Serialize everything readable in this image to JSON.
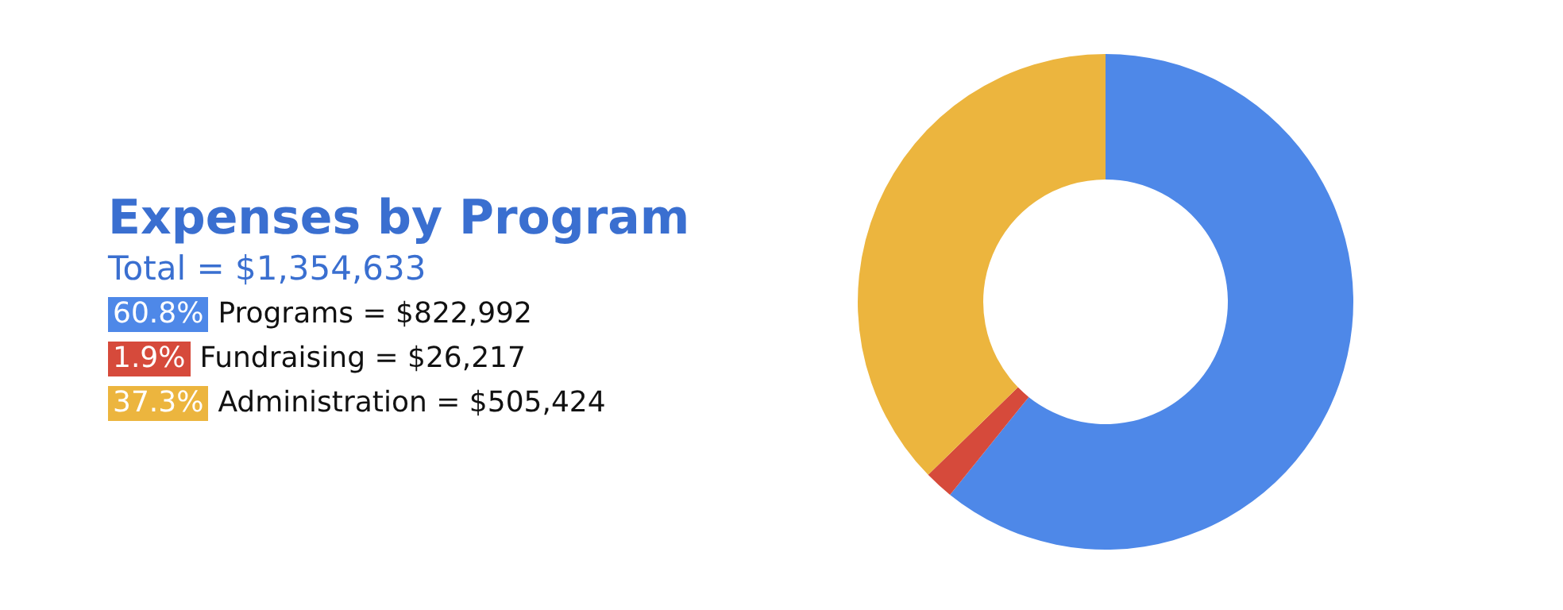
{
  "chart_data": {
    "type": "donut",
    "title": "Expenses by Program",
    "subtitle": "Total = $1,354,633",
    "categories": [
      "Programs = $822,992",
      "Fundraising = $26,217",
      "Administration = $505,424"
    ],
    "values": [
      60.8,
      1.9,
      37.3
    ],
    "colors": [
      "#4e88e8",
      "#d64a3b",
      "#ecb53e"
    ],
    "value_labels": [
      "60.8%",
      "1.9%",
      "37.3%"
    ],
    "legend": "left"
  }
}
